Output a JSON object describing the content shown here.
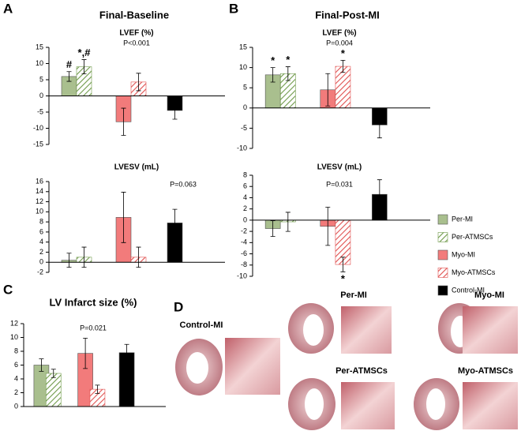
{
  "panels": [
    {
      "letter": "A",
      "title": "Final-Baseline"
    },
    {
      "letter": "B",
      "title": "Final-Post-MI"
    },
    {
      "letter": "C"
    },
    {
      "letter": "D"
    }
  ],
  "photos": [
    "Control-MI",
    "Per-MI",
    "Myo-MI",
    "Per-ATMSCs",
    "Myo-ATMSCs"
  ],
  "chart_data": [
    {
      "type": "bar",
      "title": "LVEF (%)",
      "subtitle": "P<0.001",
      "ylim": [
        -15,
        15
      ],
      "yticks": [
        -15,
        -10,
        -5,
        0,
        5,
        10,
        15
      ],
      "series": [
        {
          "name": "Per-MI",
          "color": "#a9bf8e",
          "values": [
            6
          ],
          "errors": [
            1.5
          ],
          "marker": "#"
        },
        {
          "name": "Per-ATMSCs",
          "color": "#6f9a4a",
          "hatched": true,
          "values": [
            9
          ],
          "errors": [
            2.2
          ],
          "marker": "*,#"
        },
        {
          "name": "Myo-MI",
          "color": "#f27b7b",
          "values": [
            -8
          ],
          "errors": [
            4.2
          ]
        },
        {
          "name": "Myo-ATMSCs",
          "color": "#e0504f",
          "hatched": true,
          "values": [
            4.3
          ],
          "errors": [
            2.7
          ]
        },
        {
          "name": "Control-MI",
          "color": "#000000",
          "values": [
            -4.5
          ],
          "errors": [
            2.7
          ]
        }
      ]
    },
    {
      "type": "bar",
      "title": "LVESV (mL)",
      "subtitle": "P=0.063",
      "ylim": [
        -2,
        16
      ],
      "yticks": [
        -2,
        0,
        2,
        4,
        6,
        8,
        10,
        12,
        14,
        16
      ],
      "series": [
        {
          "name": "Per-MI",
          "color": "#a9bf8e",
          "values": [
            0.4
          ],
          "errors": [
            1.4
          ]
        },
        {
          "name": "Per-ATMSCs",
          "color": "#6f9a4a",
          "hatched": true,
          "values": [
            1.0
          ],
          "errors": [
            2.0
          ]
        },
        {
          "name": "Myo-MI",
          "color": "#f27b7b",
          "values": [
            8.9
          ],
          "errors": [
            5.0
          ]
        },
        {
          "name": "Myo-ATMSCs",
          "color": "#e0504f",
          "hatched": true,
          "values": [
            1.0
          ],
          "errors": [
            2.0
          ]
        },
        {
          "name": "Control-MI",
          "color": "#000000",
          "values": [
            7.8
          ],
          "errors": [
            2.7
          ]
        }
      ]
    },
    {
      "type": "bar",
      "title": "LVEF (%)",
      "subtitle": "P=0.004",
      "ylim": [
        -10,
        15
      ],
      "yticks": [
        -10,
        -5,
        0,
        5,
        10,
        15
      ],
      "series": [
        {
          "name": "Per-MI",
          "color": "#a9bf8e",
          "values": [
            8.2
          ],
          "errors": [
            1.8
          ],
          "marker": "*"
        },
        {
          "name": "Per-ATMSCs",
          "color": "#6f9a4a",
          "hatched": true,
          "values": [
            8.5
          ],
          "errors": [
            1.7
          ],
          "marker": "*"
        },
        {
          "name": "Myo-MI",
          "color": "#f27b7b",
          "values": [
            4.5
          ],
          "errors": [
            4.0
          ]
        },
        {
          "name": "Myo-ATMSCs",
          "color": "#e0504f",
          "hatched": true,
          "values": [
            10.3
          ],
          "errors": [
            1.5
          ],
          "marker": "*"
        },
        {
          "name": "Control-MI",
          "color": "#000000",
          "values": [
            -4.2
          ],
          "errors": [
            3.2
          ]
        }
      ]
    },
    {
      "type": "bar",
      "title": "LVESV (mL)",
      "subtitle": "P=0.031",
      "ylim": [
        -10,
        8
      ],
      "yticks": [
        -10,
        -8,
        -6,
        -4,
        -2,
        0,
        2,
        4,
        6,
        8
      ],
      "series": [
        {
          "name": "Per-MI",
          "color": "#a9bf8e",
          "values": [
            -1.5
          ],
          "errors": [
            1.4
          ]
        },
        {
          "name": "Per-ATMSCs",
          "color": "#6f9a4a",
          "hatched": true,
          "values": [
            -0.3
          ],
          "errors": [
            1.7
          ]
        },
        {
          "name": "Myo-MI",
          "color": "#f27b7b",
          "values": [
            -1.1
          ],
          "errors": [
            3.4
          ]
        },
        {
          "name": "Myo-ATMSCs",
          "color": "#e0504f",
          "hatched": true,
          "values": [
            -7.9
          ],
          "errors": [
            1.3
          ],
          "marker": "*"
        },
        {
          "name": "Control-MI",
          "color": "#000000",
          "values": [
            4.6
          ],
          "errors": [
            2.6
          ]
        }
      ]
    },
    {
      "type": "bar",
      "title": "LV Infarct size (%)",
      "subtitle": "P=0.021",
      "ylim": [
        0,
        12
      ],
      "yticks": [
        0,
        2,
        4,
        6,
        8,
        10,
        12
      ],
      "series": [
        {
          "name": "Per-MI",
          "color": "#a9bf8e",
          "values": [
            6.0
          ],
          "errors": [
            0.9
          ]
        },
        {
          "name": "Per-ATMSCs",
          "color": "#6f9a4a",
          "hatched": true,
          "values": [
            4.8
          ],
          "errors": [
            0.6
          ]
        },
        {
          "name": "Myo-MI",
          "color": "#f27b7b",
          "values": [
            7.7
          ],
          "errors": [
            2.2
          ]
        },
        {
          "name": "Myo-ATMSCs",
          "color": "#e0504f",
          "hatched": true,
          "values": [
            2.5
          ],
          "errors": [
            0.6
          ]
        },
        {
          "name": "Control-MI",
          "color": "#000000",
          "values": [
            7.8
          ],
          "errors": [
            1.2
          ]
        }
      ]
    }
  ]
}
